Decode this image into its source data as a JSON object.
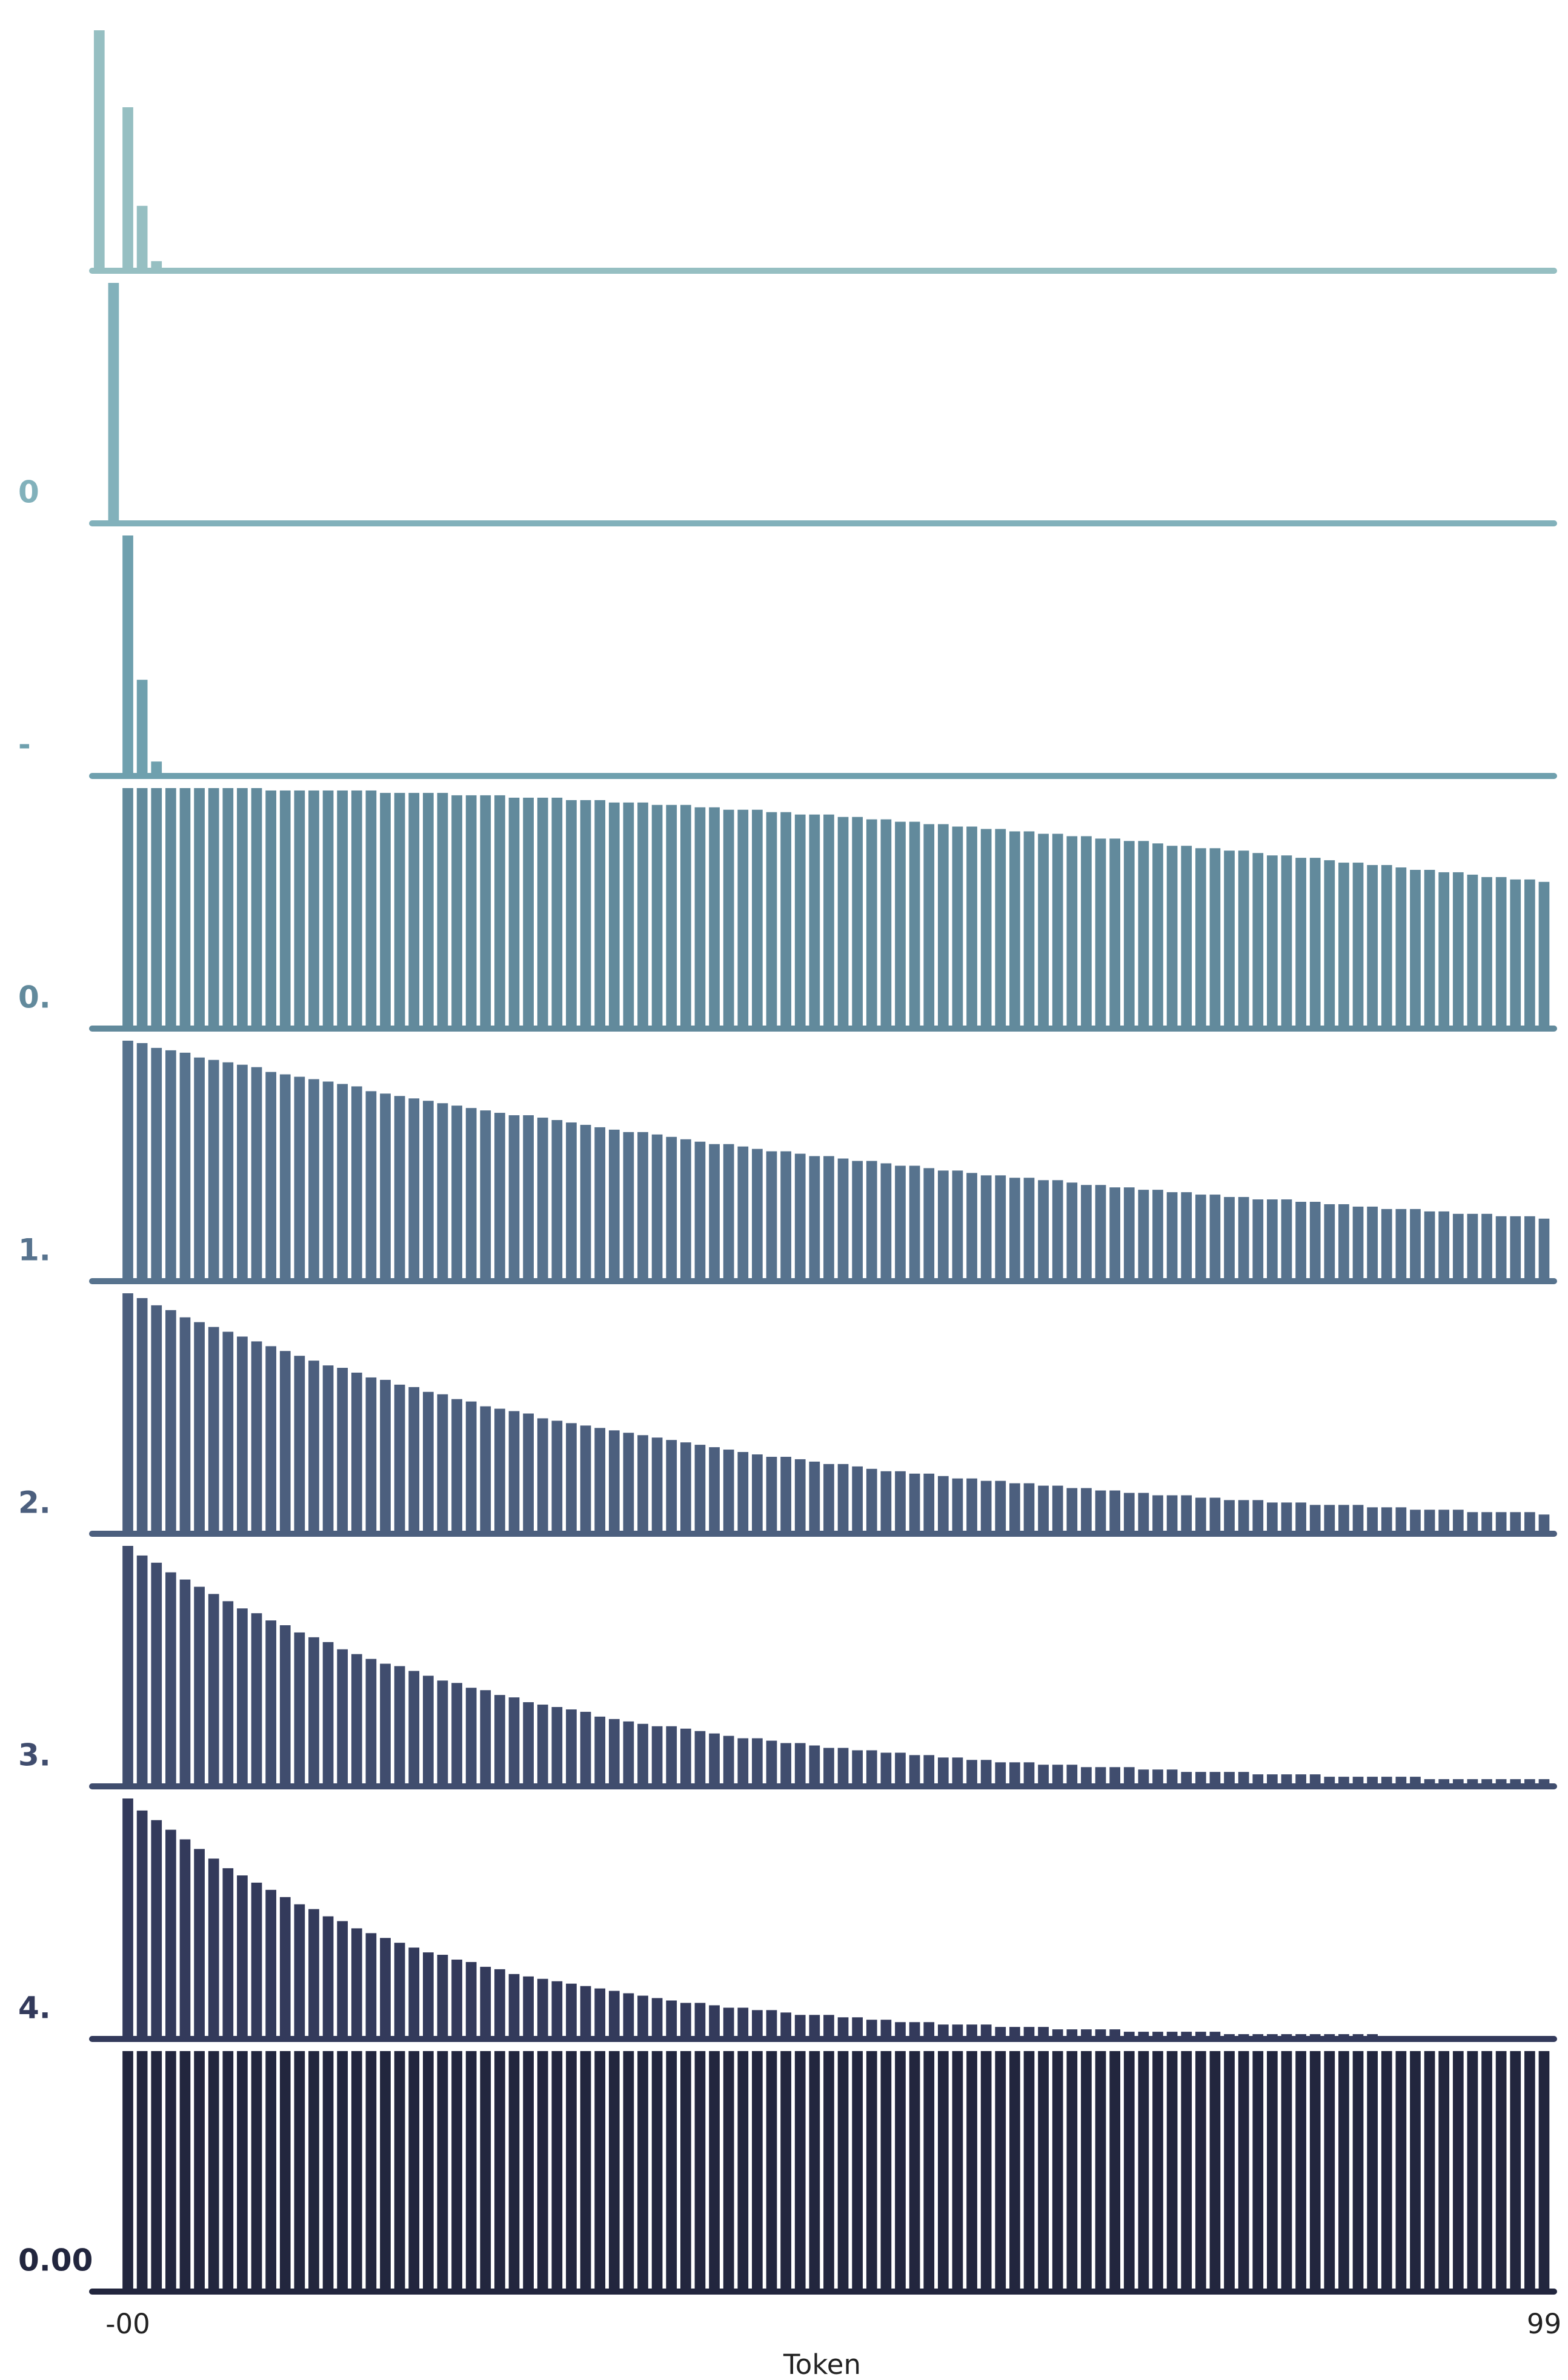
{
  "chart_data": {
    "type": "bar",
    "xlabel": "Token",
    "x": [
      -2,
      -1,
      0,
      1,
      2,
      3,
      4,
      5,
      6,
      7,
      8,
      9,
      10,
      11,
      12,
      13,
      14,
      15,
      16,
      17,
      18,
      19,
      20,
      21,
      22,
      23,
      24,
      25,
      26,
      27,
      28,
      29,
      30,
      31,
      32,
      33,
      34,
      35,
      36,
      37,
      38,
      39,
      40,
      41,
      42,
      43,
      44,
      45,
      46,
      47,
      48,
      49,
      50,
      51,
      52,
      53,
      54,
      55,
      56,
      57,
      58,
      59,
      60,
      61,
      62,
      63,
      64,
      65,
      66,
      67,
      68,
      69,
      70,
      71,
      72,
      73,
      74,
      75,
      76,
      77,
      78,
      79,
      80,
      81,
      82,
      83,
      84,
      85,
      86,
      87,
      88,
      89,
      90,
      91,
      92,
      93,
      94,
      95,
      96,
      97,
      98,
      99
    ],
    "xlim": [
      -2.5,
      99.7
    ],
    "xticks": [
      {
        "value": 0,
        "label": "-00"
      },
      99
    ],
    "ylim": [
      0,
      1
    ],
    "series": [
      {
        "name": null,
        "color": "#96bfc2",
        "values": [
          1,
          0,
          0.68,
          0.27,
          0.04,
          0,
          0,
          0,
          0,
          0,
          0,
          0,
          0,
          0,
          0,
          0,
          0,
          0,
          0,
          0,
          0,
          0,
          0,
          0,
          0,
          0,
          0,
          0,
          0,
          0,
          0,
          0,
          0,
          0,
          0,
          0,
          0,
          0,
          0,
          0,
          0,
          0,
          0,
          0,
          0,
          0,
          0,
          0,
          0,
          0,
          0,
          0,
          0,
          0,
          0,
          0,
          0,
          0,
          0,
          0,
          0,
          0,
          0,
          0,
          0,
          0,
          0,
          0,
          0,
          0,
          0,
          0,
          0,
          0,
          0,
          0,
          0,
          0,
          0,
          0,
          0,
          0,
          0,
          0,
          0,
          0,
          0,
          0,
          0,
          0,
          0,
          0,
          0,
          0,
          0,
          0,
          0,
          0,
          0,
          0,
          0,
          0
        ]
      },
      {
        "name": "0",
        "color": "#82b1bb",
        "values": [
          0,
          1,
          0,
          0,
          0,
          0,
          0,
          0,
          0,
          0,
          0,
          0,
          0,
          0,
          0,
          0,
          0,
          0,
          0,
          0,
          0,
          0,
          0,
          0,
          0,
          0,
          0,
          0,
          0,
          0,
          0,
          0,
          0,
          0,
          0,
          0,
          0,
          0,
          0,
          0,
          0,
          0,
          0,
          0,
          0,
          0,
          0,
          0,
          0,
          0,
          0,
          0,
          0,
          0,
          0,
          0,
          0,
          0,
          0,
          0,
          0,
          0,
          0,
          0,
          0,
          0,
          0,
          0,
          0,
          0,
          0,
          0,
          0,
          0,
          0,
          0,
          0,
          0,
          0,
          0,
          0,
          0,
          0,
          0,
          0,
          0,
          0,
          0,
          0,
          0,
          0,
          0,
          0,
          0,
          0,
          0,
          0,
          0,
          0,
          0,
          0,
          0
        ]
      },
      {
        "name": "-",
        "color": "#6fa0ae",
        "values": [
          0,
          0,
          1,
          0.4,
          0.06,
          0,
          0,
          0,
          0,
          0,
          0,
          0,
          0,
          0,
          0,
          0,
          0,
          0,
          0,
          0,
          0,
          0,
          0,
          0,
          0,
          0,
          0,
          0,
          0,
          0,
          0,
          0,
          0,
          0,
          0,
          0,
          0,
          0,
          0,
          0,
          0,
          0,
          0,
          0,
          0,
          0,
          0,
          0,
          0,
          0,
          0,
          0,
          0,
          0,
          0,
          0,
          0,
          0,
          0,
          0,
          0,
          0,
          0,
          0,
          0,
          0,
          0,
          0,
          0,
          0,
          0,
          0,
          0,
          0,
          0,
          0,
          0,
          0,
          0,
          0,
          0,
          0,
          0,
          0,
          0,
          0,
          0,
          0,
          0,
          0,
          0,
          0,
          0,
          0,
          0,
          0,
          0,
          0,
          0,
          0,
          0,
          0
        ]
      },
      {
        "name": "0.",
        "color": "#628a9c",
        "values": [
          null,
          null,
          1,
          1,
          1,
          1,
          1,
          1,
          1,
          1,
          1,
          1,
          0.99,
          0.99,
          0.99,
          0.99,
          0.99,
          0.99,
          0.99,
          0.99,
          0.98,
          0.98,
          0.98,
          0.98,
          0.98,
          0.97,
          0.97,
          0.97,
          0.97,
          0.96,
          0.96,
          0.96,
          0.96,
          0.95,
          0.95,
          0.95,
          0.94,
          0.94,
          0.94,
          0.93,
          0.93,
          0.93,
          0.92,
          0.92,
          0.91,
          0.91,
          0.91,
          0.9,
          0.9,
          0.89,
          0.89,
          0.89,
          0.88,
          0.88,
          0.87,
          0.87,
          0.86,
          0.86,
          0.85,
          0.85,
          0.84,
          0.84,
          0.83,
          0.83,
          0.82,
          0.82,
          0.81,
          0.81,
          0.8,
          0.8,
          0.79,
          0.79,
          0.78,
          0.78,
          0.77,
          0.76,
          0.76,
          0.75,
          0.75,
          0.74,
          0.74,
          0.73,
          0.72,
          0.72,
          0.71,
          0.71,
          0.7,
          0.69,
          0.69,
          0.68,
          0.68,
          0.67,
          0.66,
          0.66,
          0.65,
          0.65,
          0.64,
          0.63,
          0.63,
          0.62,
          0.62,
          0.61
        ]
      },
      {
        "name": "1.",
        "color": "#57738e",
        "values": [
          null,
          null,
          1,
          0.99,
          0.97,
          0.96,
          0.95,
          0.93,
          0.92,
          0.91,
          0.9,
          0.89,
          0.87,
          0.86,
          0.85,
          0.84,
          0.83,
          0.82,
          0.81,
          0.79,
          0.78,
          0.77,
          0.76,
          0.75,
          0.74,
          0.73,
          0.72,
          0.71,
          0.7,
          0.69,
          0.69,
          0.68,
          0.67,
          0.66,
          0.65,
          0.64,
          0.63,
          0.62,
          0.62,
          0.61,
          0.6,
          0.59,
          0.58,
          0.57,
          0.57,
          0.56,
          0.55,
          0.54,
          0.54,
          0.53,
          0.52,
          0.52,
          0.51,
          0.5,
          0.5,
          0.49,
          0.48,
          0.48,
          0.47,
          0.46,
          0.46,
          0.45,
          0.44,
          0.44,
          0.43,
          0.43,
          0.42,
          0.42,
          0.41,
          0.4,
          0.4,
          0.39,
          0.39,
          0.38,
          0.38,
          0.37,
          0.37,
          0.36,
          0.36,
          0.35,
          0.35,
          0.34,
          0.34,
          0.34,
          0.33,
          0.33,
          0.32,
          0.32,
          0.31,
          0.31,
          0.3,
          0.3,
          0.3,
          0.29,
          0.29,
          0.28,
          0.28,
          0.28,
          0.27,
          0.27,
          0.27,
          0.26
        ]
      },
      {
        "name": "2.",
        "color": "#4c5f7e",
        "values": [
          null,
          null,
          1,
          0.98,
          0.95,
          0.93,
          0.9,
          0.88,
          0.86,
          0.84,
          0.82,
          0.8,
          0.78,
          0.76,
          0.74,
          0.72,
          0.7,
          0.69,
          0.67,
          0.65,
          0.64,
          0.62,
          0.61,
          0.59,
          0.58,
          0.56,
          0.55,
          0.53,
          0.52,
          0.51,
          0.5,
          0.48,
          0.47,
          0.46,
          0.45,
          0.44,
          0.43,
          0.42,
          0.41,
          0.4,
          0.39,
          0.38,
          0.37,
          0.36,
          0.35,
          0.34,
          0.33,
          0.32,
          0.32,
          0.31,
          0.3,
          0.29,
          0.29,
          0.28,
          0.27,
          0.26,
          0.26,
          0.25,
          0.25,
          0.24,
          0.23,
          0.23,
          0.22,
          0.22,
          0.21,
          0.21,
          0.2,
          0.2,
          0.19,
          0.19,
          0.18,
          0.18,
          0.17,
          0.17,
          0.16,
          0.16,
          0.16,
          0.15,
          0.15,
          0.14,
          0.14,
          0.14,
          0.13,
          0.13,
          0.13,
          0.12,
          0.12,
          0.12,
          0.12,
          0.11,
          0.11,
          0.11,
          0.1,
          0.1,
          0.1,
          0.1,
          0.09,
          0.09,
          0.09,
          0.09,
          0.09,
          0.08
        ]
      },
      {
        "name": "3.",
        "color": "#404d6e",
        "values": [
          null,
          null,
          1,
          0.96,
          0.93,
          0.89,
          0.86,
          0.83,
          0.8,
          0.77,
          0.74,
          0.72,
          0.69,
          0.67,
          0.64,
          0.62,
          0.6,
          0.57,
          0.55,
          0.53,
          0.51,
          0.5,
          0.48,
          0.46,
          0.44,
          0.43,
          0.41,
          0.4,
          0.38,
          0.37,
          0.35,
          0.34,
          0.33,
          0.32,
          0.31,
          0.29,
          0.28,
          0.27,
          0.26,
          0.25,
          0.25,
          0.24,
          0.23,
          0.22,
          0.21,
          0.2,
          0.2,
          0.19,
          0.18,
          0.18,
          0.17,
          0.16,
          0.16,
          0.15,
          0.15,
          0.14,
          0.14,
          0.13,
          0.13,
          0.12,
          0.12,
          0.11,
          0.11,
          0.1,
          0.1,
          0.1,
          0.09,
          0.09,
          0.09,
          0.08,
          0.08,
          0.08,
          0.08,
          0.07,
          0.07,
          0.07,
          0.06,
          0.06,
          0.06,
          0.06,
          0.06,
          0.05,
          0.05,
          0.05,
          0.05,
          0.05,
          0.04,
          0.04,
          0.04,
          0.04,
          0.04,
          0.04,
          0.04,
          0.03,
          0.03,
          0.03,
          0.03,
          0.03,
          0.03,
          0.03,
          0.03,
          0.03
        ]
      },
      {
        "name": "4.",
        "color": "#333a5b",
        "values": [
          null,
          null,
          1,
          0.95,
          0.91,
          0.87,
          0.83,
          0.79,
          0.75,
          0.71,
          0.68,
          0.65,
          0.62,
          0.59,
          0.56,
          0.54,
          0.51,
          0.49,
          0.46,
          0.44,
          0.42,
          0.4,
          0.38,
          0.36,
          0.35,
          0.33,
          0.32,
          0.3,
          0.29,
          0.27,
          0.26,
          0.25,
          0.24,
          0.23,
          0.22,
          0.21,
          0.2,
          0.19,
          0.18,
          0.17,
          0.16,
          0.15,
          0.15,
          0.14,
          0.13,
          0.13,
          0.12,
          0.12,
          0.11,
          0.1,
          0.1,
          0.1,
          0.09,
          0.09,
          0.08,
          0.08,
          0.07,
          0.07,
          0.07,
          0.06,
          0.06,
          0.06,
          0.06,
          0.05,
          0.05,
          0.05,
          0.05,
          0.04,
          0.04,
          0.04,
          0.04,
          0.04,
          0.03,
          0.03,
          0.03,
          0.03,
          0.03,
          0.03,
          0.03,
          0.02,
          0.02,
          0.02,
          0.02,
          0.02,
          0.02,
          0.02,
          0.02,
          0.02,
          0.02,
          0.02,
          0.01,
          0.01,
          0.01,
          0.01,
          0.01,
          0.01,
          0.01,
          0.01,
          0.01,
          0.01,
          0.01,
          0.01
        ]
      },
      {
        "name": "0.00",
        "color": "#22263e",
        "values": [
          null,
          null,
          1,
          1,
          1,
          1,
          1,
          1,
          1,
          1,
          1,
          1,
          1,
          1,
          1,
          1,
          1,
          1,
          1,
          1,
          1,
          1,
          1,
          1,
          1,
          1,
          1,
          1,
          1,
          1,
          1,
          1,
          1,
          1,
          1,
          1,
          1,
          1,
          1,
          1,
          1,
          1,
          1,
          1,
          1,
          1,
          1,
          1,
          1,
          1,
          1,
          1,
          1,
          1,
          1,
          1,
          1,
          1,
          1,
          1,
          1,
          1,
          1,
          1,
          1,
          1,
          1,
          1,
          1,
          1,
          1,
          1,
          1,
          1,
          1,
          1,
          1,
          1,
          1,
          1,
          1,
          1,
          1,
          1,
          1,
          1,
          1,
          1,
          1,
          1,
          1,
          1,
          1,
          1,
          1,
          1,
          1,
          1,
          1,
          1,
          1,
          1
        ]
      }
    ]
  }
}
